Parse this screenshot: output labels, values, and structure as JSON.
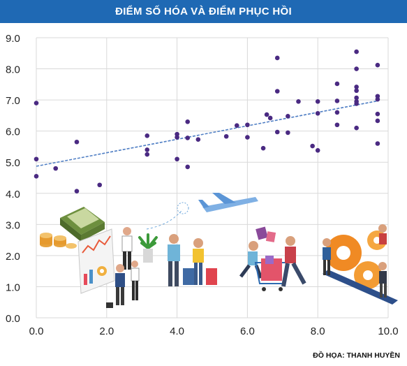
{
  "chart_data": {
    "type": "scatter",
    "title": "ĐIỂM SỐ HÓA VÀ ĐIỂM PHỤC HỒI",
    "xlim": [
      0,
      10
    ],
    "ylim": [
      0,
      9
    ],
    "x_ticks": [
      "0.0",
      "2.0",
      "4.0",
      "6.0",
      "8.0",
      "10.0"
    ],
    "y_ticks": [
      "0.0",
      "1.0",
      "2.0",
      "3.0",
      "4.0",
      "5.0",
      "6.0",
      "7.0",
      "8.0",
      "9.0"
    ],
    "grid": true,
    "trendline": {
      "style": "dashed",
      "x": [
        0,
        9.7
      ],
      "y": [
        4.87,
        6.97
      ]
    },
    "points": [
      {
        "x": 0.0,
        "y": 6.9
      },
      {
        "x": 0.0,
        "y": 5.1
      },
      {
        "x": 0.0,
        "y": 4.55
      },
      {
        "x": 0.55,
        "y": 4.8
      },
      {
        "x": 1.15,
        "y": 5.65
      },
      {
        "x": 1.15,
        "y": 4.07
      },
      {
        "x": 1.8,
        "y": 4.27
      },
      {
        "x": 3.15,
        "y": 5.85
      },
      {
        "x": 3.15,
        "y": 5.4
      },
      {
        "x": 3.15,
        "y": 5.25
      },
      {
        "x": 4.0,
        "y": 5.9
      },
      {
        "x": 4.0,
        "y": 5.8
      },
      {
        "x": 4.0,
        "y": 5.1
      },
      {
        "x": 4.3,
        "y": 6.3
      },
      {
        "x": 4.3,
        "y": 5.78
      },
      {
        "x": 4.3,
        "y": 4.85
      },
      {
        "x": 4.6,
        "y": 5.73
      },
      {
        "x": 5.4,
        "y": 5.83
      },
      {
        "x": 5.7,
        "y": 6.18
      },
      {
        "x": 6.0,
        "y": 6.2
      },
      {
        "x": 6.0,
        "y": 5.8
      },
      {
        "x": 6.45,
        "y": 5.45
      },
      {
        "x": 6.55,
        "y": 6.53
      },
      {
        "x": 6.65,
        "y": 6.42
      },
      {
        "x": 6.85,
        "y": 8.35
      },
      {
        "x": 6.85,
        "y": 7.28
      },
      {
        "x": 6.85,
        "y": 5.97
      },
      {
        "x": 7.15,
        "y": 6.48
      },
      {
        "x": 7.15,
        "y": 5.95
      },
      {
        "x": 7.45,
        "y": 6.95
      },
      {
        "x": 7.85,
        "y": 5.52
      },
      {
        "x": 8.0,
        "y": 6.95
      },
      {
        "x": 8.0,
        "y": 6.57
      },
      {
        "x": 8.0,
        "y": 5.38
      },
      {
        "x": 8.55,
        "y": 7.52
      },
      {
        "x": 8.55,
        "y": 6.97
      },
      {
        "x": 8.55,
        "y": 6.6
      },
      {
        "x": 8.55,
        "y": 6.2
      },
      {
        "x": 9.1,
        "y": 8.55
      },
      {
        "x": 9.1,
        "y": 8.0
      },
      {
        "x": 9.1,
        "y": 7.42
      },
      {
        "x": 9.1,
        "y": 7.3
      },
      {
        "x": 9.1,
        "y": 7.07
      },
      {
        "x": 9.1,
        "y": 6.95
      },
      {
        "x": 9.1,
        "y": 6.88
      },
      {
        "x": 9.1,
        "y": 6.1
      },
      {
        "x": 9.7,
        "y": 8.12
      },
      {
        "x": 9.7,
        "y": 7.12
      },
      {
        "x": 9.7,
        "y": 7.02
      },
      {
        "x": 9.7,
        "y": 6.55
      },
      {
        "x": 9.7,
        "y": 6.33
      },
      {
        "x": 9.7,
        "y": 5.6
      }
    ],
    "colors": {
      "point": "#4a2a82",
      "trend": "#4f7ec4",
      "grid": "#d9d9d9",
      "title_bar": "#1f69b4"
    }
  },
  "credit": "ĐỒ HỌA: THANH HUYỀN"
}
